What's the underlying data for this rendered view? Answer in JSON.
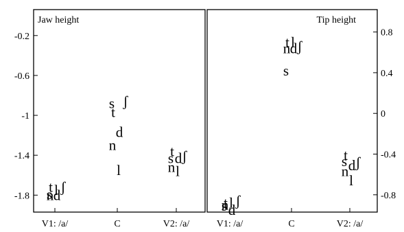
{
  "chart_data": [
    {
      "type": "scatter",
      "title": "Jaw height",
      "categories": [
        "V1: /a/",
        "C",
        "V2: /a/"
      ],
      "ylim": [
        -1.97,
        0.06
      ],
      "yticks": [
        -0.2,
        -0.6,
        -1,
        -1.4,
        -1.8
      ],
      "ytick_labels": [
        "-0.2",
        "-0.6",
        "-1",
        "-1.4",
        "-1.8"
      ],
      "y_axis_side": "left",
      "grid": false,
      "points": [
        {
          "label": "t",
          "category": "V1: /a/",
          "y": -1.72
        },
        {
          "label": "l",
          "category": "V1: /a/",
          "y": -1.75
        },
        {
          "label": "ʃ",
          "category": "V1: /a/",
          "y": -1.72
        },
        {
          "label": "s",
          "category": "V1: /a/",
          "y": -1.79
        },
        {
          "label": "n",
          "category": "V1: /a/",
          "y": -1.8
        },
        {
          "label": "d",
          "category": "V1: /a/",
          "y": -1.8
        },
        {
          "label": "s",
          "category": "C",
          "y": -0.88
        },
        {
          "label": "ʃ",
          "category": "C",
          "y": -0.86
        },
        {
          "label": "t",
          "category": "C",
          "y": -0.97
        },
        {
          "label": "d",
          "category": "C",
          "y": -1.17
        },
        {
          "label": "n",
          "category": "C",
          "y": -1.3
        },
        {
          "label": "l",
          "category": "C",
          "y": -1.55
        },
        {
          "label": "t",
          "category": "V2: /a/",
          "y": -1.36
        },
        {
          "label": "s",
          "category": "V2: /a/",
          "y": -1.43
        },
        {
          "label": "d",
          "category": "V2: /a/",
          "y": -1.43
        },
        {
          "label": "ʃ",
          "category": "V2: /a/",
          "y": -1.41
        },
        {
          "label": "n",
          "category": "V2: /a/",
          "y": -1.52
        },
        {
          "label": "l",
          "category": "V2: /a/",
          "y": -1.56
        }
      ]
    },
    {
      "type": "scatter",
      "title": "Tip height",
      "categories": [
        "V1: /a/",
        "C",
        "V2: /a/"
      ],
      "ylim": [
        -0.97,
        1.02
      ],
      "yticks": [
        0.8,
        0.4,
        0,
        -0.4,
        -0.8
      ],
      "ytick_labels": [
        "0.8",
        "0.4",
        "0",
        "-0.4",
        "-0.8"
      ],
      "y_axis_side": "right",
      "grid": false,
      "points": [
        {
          "label": "t",
          "category": "V1: /a/",
          "y": -0.88
        },
        {
          "label": "l",
          "category": "V1: /a/",
          "y": -0.88
        },
        {
          "label": "ʃ",
          "category": "V1: /a/",
          "y": -0.86
        },
        {
          "label": "n",
          "category": "V1: /a/",
          "y": -0.9
        },
        {
          "label": "s",
          "category": "V1: /a/",
          "y": -0.91
        },
        {
          "label": "d",
          "category": "V1: /a/",
          "y": -0.95
        },
        {
          "label": "t",
          "category": "C",
          "y": 0.7
        },
        {
          "label": "l",
          "category": "C",
          "y": 0.7
        },
        {
          "label": "n",
          "category": "C",
          "y": 0.64
        },
        {
          "label": "d",
          "category": "C",
          "y": 0.64
        },
        {
          "label": "ʃ",
          "category": "C",
          "y": 0.66
        },
        {
          "label": "s",
          "category": "C",
          "y": 0.42
        },
        {
          "label": "t",
          "category": "V2: /a/",
          "y": -0.41
        },
        {
          "label": "s",
          "category": "V2: /a/",
          "y": -0.47
        },
        {
          "label": "d",
          "category": "V2: /a/",
          "y": -0.51
        },
        {
          "label": "ʃ",
          "category": "V2: /a/",
          "y": -0.48
        },
        {
          "label": "n",
          "category": "V2: /a/",
          "y": -0.57
        },
        {
          "label": "l",
          "category": "V2: /a/",
          "y": -0.66
        }
      ]
    }
  ]
}
